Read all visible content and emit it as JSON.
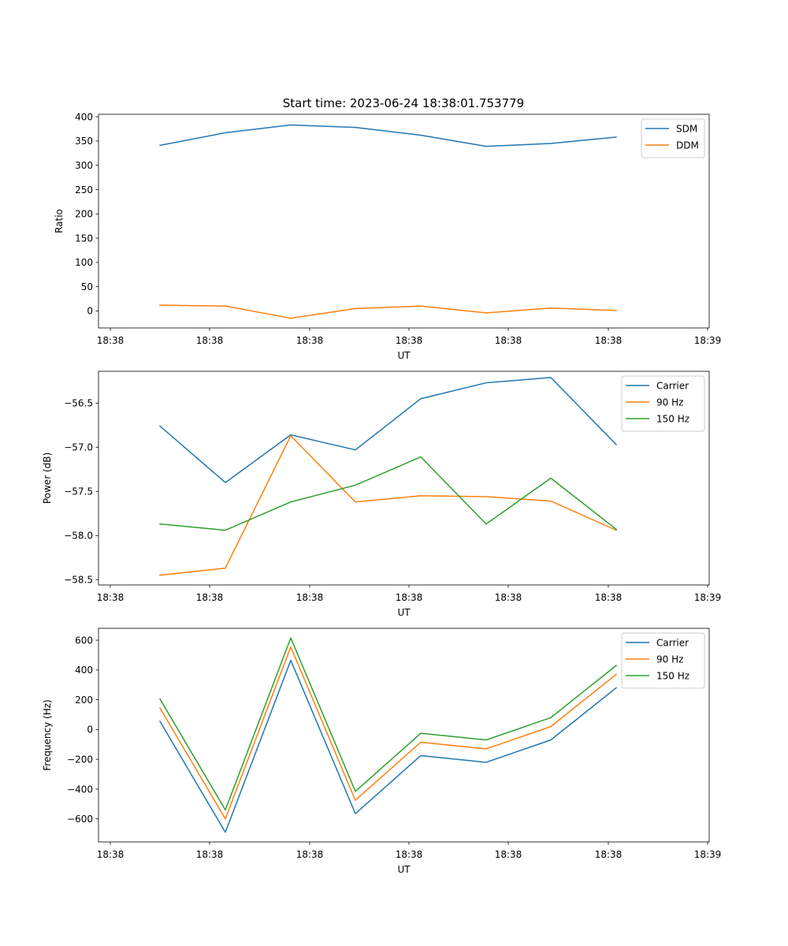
{
  "title": "Start time: 2023-06-24 18:38:01.753779",
  "chart_data": [
    {
      "type": "line",
      "xlabel": "UT",
      "ylabel": "Ratio",
      "x_tick_labels": [
        "18:38",
        "18:38",
        "18:38",
        "18:38",
        "18:38",
        "18:38",
        "18:39"
      ],
      "y_ticks": [
        0,
        50,
        100,
        150,
        200,
        250,
        300,
        350,
        400
      ],
      "ylim": [
        -35,
        405
      ],
      "grid": false,
      "legend_position": "top-right",
      "series": [
        {
          "name": "SDM",
          "color": "#1f77b4",
          "values": [
            341,
            367,
            383,
            378,
            362,
            339,
            345,
            358
          ]
        },
        {
          "name": "DDM",
          "color": "#ff7f0e",
          "values": [
            12,
            10,
            -15,
            5,
            10,
            -4,
            6,
            1
          ]
        }
      ]
    },
    {
      "type": "line",
      "xlabel": "UT",
      "ylabel": "Power (dB)",
      "x_tick_labels": [
        "18:38",
        "18:38",
        "18:38",
        "18:38",
        "18:38",
        "18:38",
        "18:39"
      ],
      "y_ticks": [
        -58.5,
        -58.0,
        -57.5,
        -57.0,
        -56.5
      ],
      "y_tick_labels": [
        "−58.5",
        "−58.0",
        "−57.5",
        "−57.0",
        "−56.5"
      ],
      "ylim": [
        -58.56,
        -56.14
      ],
      "grid": false,
      "legend_position": "top-right",
      "series": [
        {
          "name": "Carrier",
          "color": "#1f77b4",
          "values": [
            -56.76,
            -57.4,
            -56.86,
            -57.03,
            -56.45,
            -56.27,
            -56.21,
            -56.97
          ]
        },
        {
          "name": "90 Hz",
          "color": "#ff7f0e",
          "values": [
            -58.45,
            -58.37,
            -56.87,
            -57.62,
            -57.55,
            -57.56,
            -57.61,
            -57.94
          ]
        },
        {
          "name": "150 Hz",
          "color": "#2ca02c",
          "values": [
            -57.87,
            -57.94,
            -57.62,
            -57.43,
            -57.11,
            -57.87,
            -57.35,
            -57.93
          ]
        }
      ]
    },
    {
      "type": "line",
      "xlabel": "UT",
      "ylabel": "Frequency (Hz)",
      "x_tick_labels": [
        "18:38",
        "18:38",
        "18:38",
        "18:38",
        "18:38",
        "18:38",
        "18:39"
      ],
      "y_ticks": [
        -600,
        -400,
        -200,
        0,
        200,
        400,
        600
      ],
      "y_tick_labels": [
        "−600",
        "−400",
        "−200",
        "0",
        "200",
        "400",
        "600"
      ],
      "ylim": [
        -755,
        680
      ],
      "grid": false,
      "legend_position": "top-right",
      "series": [
        {
          "name": "Carrier",
          "color": "#1f77b4",
          "values": [
            55,
            -690,
            465,
            -565,
            -175,
            -220,
            -70,
            280
          ]
        },
        {
          "name": "90 Hz",
          "color": "#ff7f0e",
          "values": [
            145,
            -600,
            555,
            -475,
            -85,
            -130,
            20,
            370
          ]
        },
        {
          "name": "150 Hz",
          "color": "#2ca02c",
          "values": [
            205,
            -540,
            615,
            -415,
            -25,
            -70,
            80,
            430
          ]
        }
      ]
    }
  ]
}
